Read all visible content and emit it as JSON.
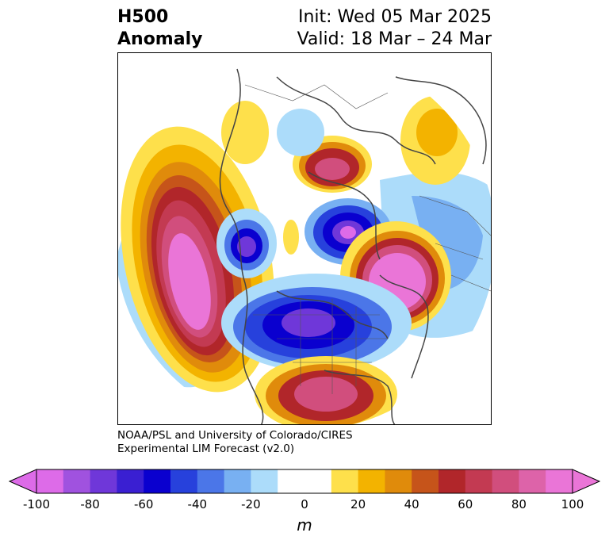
{
  "title": {
    "left_line1": "H500",
    "left_line2": "Anomaly",
    "right_line1": "Init: Wed 05 Mar 2025",
    "right_line2": "Valid: 18 Mar – 24 Mar"
  },
  "credit": {
    "line1": "NOAA/PSL and University of Colorado/CIRES",
    "line2": "Experimental LIM Forecast (v2.0)"
  },
  "colorbar": {
    "unit": "m",
    "ticks": [
      "-100",
      "-80",
      "-60",
      "-40",
      "-20",
      "0",
      "20",
      "40",
      "60",
      "80",
      "100"
    ],
    "colors": [
      "#dd6be8",
      "#a052df",
      "#6f37d9",
      "#3a1fd2",
      "#0a00cf",
      "#2741dc",
      "#4b76e8",
      "#78b0f2",
      "#acdcfa",
      "#ffffff",
      "#ffffff",
      "#fee04b",
      "#f3b300",
      "#e08b0b",
      "#c6541a",
      "#b1262a",
      "#c33a52",
      "#d14e7d",
      "#dd63a9",
      "#ea75d7"
    ]
  },
  "anomaly_centers": [
    {
      "region": "Northeast Pacific",
      "sign": "positive"
    },
    {
      "region": "Great Lakes / Eastern Canada",
      "sign": "negative"
    },
    {
      "region": "Western Russia",
      "sign": "positive"
    },
    {
      "region": "Northeast Atlantic / Europe",
      "sign": "negative"
    },
    {
      "region": "Gulf of Mexico",
      "sign": "positive"
    }
  ]
}
